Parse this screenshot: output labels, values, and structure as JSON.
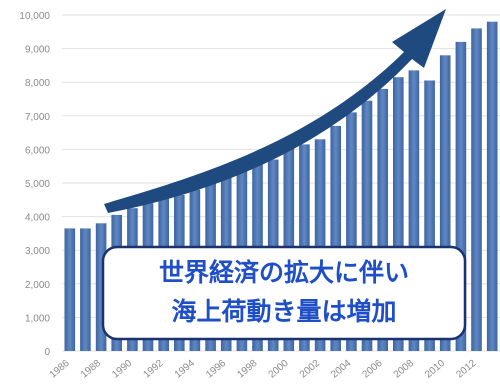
{
  "chart_data": {
    "type": "bar",
    "title": "",
    "xlabel": "",
    "ylabel": "",
    "ylim": [
      0,
      10000
    ],
    "grid": true,
    "legend": "none",
    "color": "#4a72b0",
    "yticks": [
      "0",
      "1,000",
      "2,000",
      "3,000",
      "4,000",
      "5,000",
      "6,000",
      "7,000",
      "8,000",
      "9,000",
      "10,000"
    ],
    "xticks": [
      "1986",
      "1988",
      "1990",
      "1992",
      "1994",
      "1996",
      "1998",
      "2000",
      "2002",
      "2004",
      "2006",
      "2008",
      "2010",
      "2012"
    ],
    "categories": [
      "1986",
      "1987",
      "1988",
      "1989",
      "1990",
      "1991",
      "1992",
      "1993",
      "1994",
      "1995",
      "1996",
      "1997",
      "1998",
      "1999",
      "2000",
      "2001",
      "2002",
      "2003",
      "2004",
      "2005",
      "2006",
      "2007",
      "2008",
      "2009",
      "2010",
      "2011",
      "2012",
      "2013"
    ],
    "values": [
      3650,
      3650,
      3800,
      4050,
      4250,
      4400,
      4550,
      4650,
      4800,
      5050,
      5250,
      5550,
      5700,
      5700,
      6100,
      6150,
      6300,
      6700,
      7100,
      7450,
      7800,
      8150,
      8350,
      8050,
      8800,
      9200,
      9600,
      9800
    ],
    "annotations": {
      "callout_lines": [
        "世界経済の拡大に伴い",
        "海上荷動き量は増加"
      ],
      "arrow": "trend-arrow-up-right"
    }
  },
  "colors": {
    "bar": "#4a72b0",
    "arrow": "#1f4a80",
    "callout_text": "#1f4fc8",
    "callout_border": "#1a3270"
  }
}
